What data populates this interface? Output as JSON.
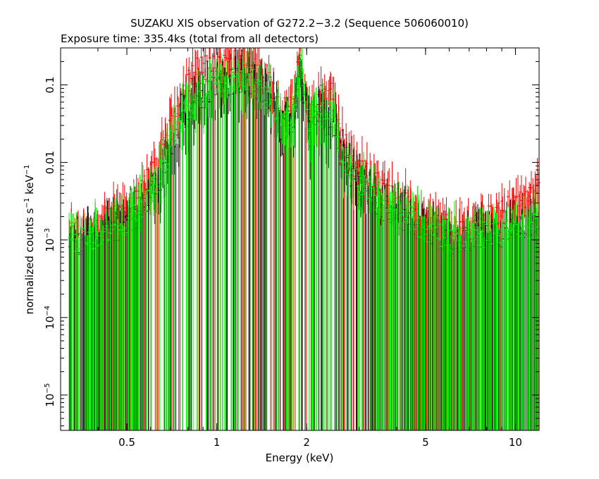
{
  "chart_data": {
    "type": "scatter",
    "title": "SUZAKU XIS observation of G272.2−3.2 (Sequence 506060010)",
    "subtitle": "Exposure time: 335.4ks (total from all detectors)",
    "xlabel": "Energy (keV)",
    "ylabel_main": "normalized counts s",
    "ylabel_sup1": "−1",
    "ylabel_mid": " keV",
    "ylabel_sup2": "−1",
    "x_scale": "log",
    "y_scale": "log",
    "xlim": [
      0.3,
      12
    ],
    "ylim": [
      3.5e-06,
      0.3
    ],
    "x_ticks": [
      {
        "value": 0.5,
        "label": "0.5"
      },
      {
        "value": 1,
        "label": "1"
      },
      {
        "value": 2,
        "label": "2"
      },
      {
        "value": 5,
        "label": "5"
      },
      {
        "value": 10,
        "label": "10"
      }
    ],
    "y_ticks": [
      {
        "value": 0.1,
        "mant": "0.1",
        "exp": ""
      },
      {
        "value": 0.01,
        "mant": "0.01",
        "exp": ""
      },
      {
        "value": 0.001,
        "mant": "10",
        "exp": "−3"
      },
      {
        "value": 0.0001,
        "mant": "10",
        "exp": "−4"
      },
      {
        "value": 1e-05,
        "mant": "10",
        "exp": "−5"
      }
    ],
    "grid": false,
    "legend": "none",
    "series": [
      {
        "color": "#ff0000",
        "x": [
          0.32,
          0.38,
          0.45,
          0.55,
          0.65,
          0.75,
          0.85,
          0.95,
          1.05,
          1.15,
          1.25,
          1.35,
          1.5,
          1.65,
          1.8,
          1.86,
          1.9,
          1.95,
          2.05,
          2.2,
          2.35,
          2.45,
          2.6,
          2.8,
          3.0,
          3.3,
          3.6,
          4.0,
          4.5,
          5.0,
          5.5,
          6.0,
          6.5,
          7.0,
          7.5,
          8.0,
          8.5,
          9.0,
          9.5,
          10.0,
          10.5,
          11.0,
          11.5,
          12.0
        ],
        "y": [
          0.0012,
          0.0014,
          0.002,
          0.0035,
          0.012,
          0.07,
          0.15,
          0.17,
          0.18,
          0.19,
          0.2,
          0.15,
          0.1,
          0.045,
          0.06,
          0.15,
          0.22,
          0.13,
          0.035,
          0.07,
          0.06,
          0.085,
          0.022,
          0.012,
          0.008,
          0.006,
          0.0045,
          0.0035,
          0.0025,
          0.0018,
          0.0015,
          0.0014,
          0.0013,
          0.0015,
          0.0017,
          0.0019,
          0.0021,
          0.0023,
          0.0025,
          0.0027,
          0.003,
          0.0032,
          0.0035,
          0.0038
        ]
      },
      {
        "color": "#00ff00",
        "x": [
          0.32,
          0.38,
          0.45,
          0.55,
          0.65,
          0.75,
          0.85,
          0.95,
          1.05,
          1.15,
          1.25,
          1.35,
          1.5,
          1.65,
          1.8,
          1.86,
          1.9,
          1.95,
          2.05,
          2.2,
          2.35,
          2.45,
          2.6,
          2.8,
          3.0,
          3.3,
          3.6,
          4.0,
          4.5,
          5.0,
          5.5,
          6.0,
          6.5,
          7.0,
          8.0,
          9.0,
          10.0,
          11.0,
          12.0
        ],
        "y": [
          0.001,
          0.0011,
          0.0013,
          0.0025,
          0.007,
          0.035,
          0.07,
          0.09,
          0.11,
          0.12,
          0.13,
          0.1,
          0.065,
          0.03,
          0.04,
          0.1,
          0.15,
          0.09,
          0.025,
          0.045,
          0.035,
          0.05,
          0.014,
          0.008,
          0.006,
          0.004,
          0.003,
          0.0024,
          0.0018,
          0.0014,
          0.0012,
          0.0011,
          0.001,
          0.0011,
          0.0012,
          0.0013,
          0.0014,
          0.0015,
          0.0016
        ]
      },
      {
        "color": "#000000",
        "x": [
          0.32,
          0.38,
          0.45,
          0.55,
          0.65,
          0.75,
          0.85,
          0.95,
          1.05,
          1.15,
          1.25,
          1.35,
          1.5,
          1.65,
          1.8,
          1.86,
          1.9,
          1.95,
          2.05,
          2.2,
          2.35,
          2.45,
          2.6,
          2.8,
          3.0,
          3.3,
          3.6,
          4.0,
          4.5,
          5.0,
          5.5,
          6.0,
          6.5,
          7.0,
          8.0,
          9.0,
          10.0,
          11.0,
          12.0
        ],
        "y": [
          0.0009,
          0.001,
          0.0012,
          0.0022,
          0.006,
          0.03,
          0.06,
          0.08,
          0.1,
          0.11,
          0.12,
          0.09,
          0.06,
          0.028,
          0.035,
          0.09,
          0.13,
          0.08,
          0.022,
          0.04,
          0.03,
          0.045,
          0.012,
          0.007,
          0.005,
          0.0035,
          0.0027,
          0.0021,
          0.0016,
          0.0012,
          0.001,
          0.0009,
          0.0009,
          0.001,
          0.0011,
          0.0012,
          0.0013,
          0.0014,
          0.0015
        ]
      }
    ]
  }
}
